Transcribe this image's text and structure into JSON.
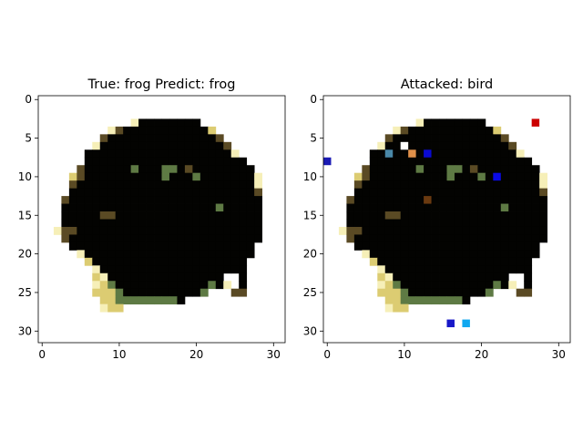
{
  "chart_data": [
    {
      "type": "heatmap",
      "title": "True: frog  Predict: frog",
      "xlim": [
        -0.5,
        31.5
      ],
      "ylim": [
        31.5,
        -0.5
      ],
      "xticks": [
        0,
        10,
        20,
        30
      ],
      "yticks": [
        0,
        5,
        10,
        15,
        20,
        25,
        30
      ],
      "xtick_labels": [
        "0",
        "10",
        "20",
        "30"
      ],
      "ytick_labels": [
        "0",
        "5",
        "10",
        "15",
        "20",
        "25",
        "30"
      ],
      "image_rows": [
        "WWWWWWWWWWWWWWWWWWWWWWWWWWWWWWWW",
        "WWWWWWWWWWWWWWWWWWWWWWWWWWWWWWWW",
        "WWWWWWWWWWWWWWWWWWWWWWWWWWWWWWWW",
        "WWWWWWWWWWWWLKKKKKKKKWWWWWWWWWWWW",
        "WWWWWWWWWLBKKKKKKKKKKKYWWWWWWWWWW",
        "WWWWWWWWBKKKKKKKKKKKKKKBWWWWWWWWW",
        "WWWWWWWLKKKKKKKKKKKKKKKKBWWWWWWWW",
        "WWWWWWKKKKKKKKKKKKKKKKKKKLWWWWWWW",
        "WWWWWWKKKKKKKKKKKKKKKKKKKKKWWWWWW",
        "WWWWWBKKKKKKGKKKGGKBKKKKKKKKWWWWW",
        "WWWWYBKKKKKKKKKKGKKKGKKKKKKKLWWWW",
        "WWWWBKKKKKKKKKKKKKKKKKKKKKKKLWWWW",
        "WWWWKKKKKKKKKKKKKKKKKKKKKKKKBWWWW",
        "WWWBKKKKKKKKKKKKKKKKKKKKKKKKKWWWW",
        "WWWKKKKKKKKKKKKKKKKKKKKGKKKKKWWWW",
        "WWWKKKKKBBKKKKKKKKKKKKKKKKKKKWWWW",
        "WWWKKKKKKKKKKKKKKKKKKKKKKKKKKWWWW",
        "WWLBBKKKKKKKKKKKKKKKKKKKKKKKKWWWW",
        "WWWBKKKKKKKKKKKKKKKKKKKKKKKKKWWWW",
        "WWWWKKKKKKKKKKKKKKKKKKKKKKKKWWWWW",
        "WWWWWLKKKKKKKKKKKKKKKKKKKKKKWWWWW",
        "WWWWWWYKKKKKKKKKKKKKKKKKKKKWWWWWW",
        "WWWWWWWLKKKKKKKKKKKKKKKKKKKWWWWWW",
        "WWWWWWWYLKKKKKKKKKKKKKKKWWKWWWWWW",
        "WWWWWWWLYGKKKKKKKKKKKKGKLWKWWWWWW",
        "WWWWWWWYYYGKKKKKKKKKKGWWWBBWWWWWW",
        "WWWWWWWWYYGGGGGGGGKWWWWWWWWWWWWWW",
        "WWWWWWWWLYYWWWWWWWWWWWWWWWWWWWWWW",
        "WWWWWWWWWWWWWWWWWWWWWWWWWWWWWWWWW",
        "WWWWWWWWWWWWWWWWWWWWWWWWWWWWWWWWW",
        "WWWWWWWWWWWWWWWWWWWWWWWWWWWWWWWWW",
        "WWWWWWWWWWWWWWWWWWWWWWWWWWWWWWWWW"
      ],
      "palette": {
        "W": "#ffffff",
        "K": "#030301",
        "B": "#5a4a24",
        "L": "#f6efb8",
        "Y": "#dccc72",
        "G": "#5e7a44"
      },
      "perturbed_pixels": []
    },
    {
      "type": "heatmap",
      "title": "Attacked: bird",
      "xlim": [
        -0.5,
        31.5
      ],
      "ylim": [
        31.5,
        -0.5
      ],
      "xticks": [
        0,
        10,
        20,
        30
      ],
      "yticks": [
        0,
        5,
        10,
        15,
        20,
        25,
        30
      ],
      "xtick_labels": [
        "0",
        "10",
        "20",
        "30"
      ],
      "ytick_labels": [
        "0",
        "5",
        "10",
        "15",
        "20",
        "25",
        "30"
      ],
      "base_image": "same as left panel",
      "perturbed_pixels": [
        {
          "x": 27,
          "y": 3,
          "color": "#cc0000"
        },
        {
          "x": 0,
          "y": 8,
          "color": "#1a1ab4"
        },
        {
          "x": 8,
          "y": 7,
          "color": "#4a88a8"
        },
        {
          "x": 10,
          "y": 6,
          "color": "#ffffff"
        },
        {
          "x": 11,
          "y": 7,
          "color": "#e0904a"
        },
        {
          "x": 13,
          "y": 7,
          "color": "#0a0ad2"
        },
        {
          "x": 22,
          "y": 10,
          "color": "#0a0ae6"
        },
        {
          "x": 13,
          "y": 13,
          "color": "#6a3a10"
        },
        {
          "x": 16,
          "y": 29,
          "color": "#1818c8"
        },
        {
          "x": 18,
          "y": 29,
          "color": "#10a8f0"
        }
      ]
    }
  ]
}
